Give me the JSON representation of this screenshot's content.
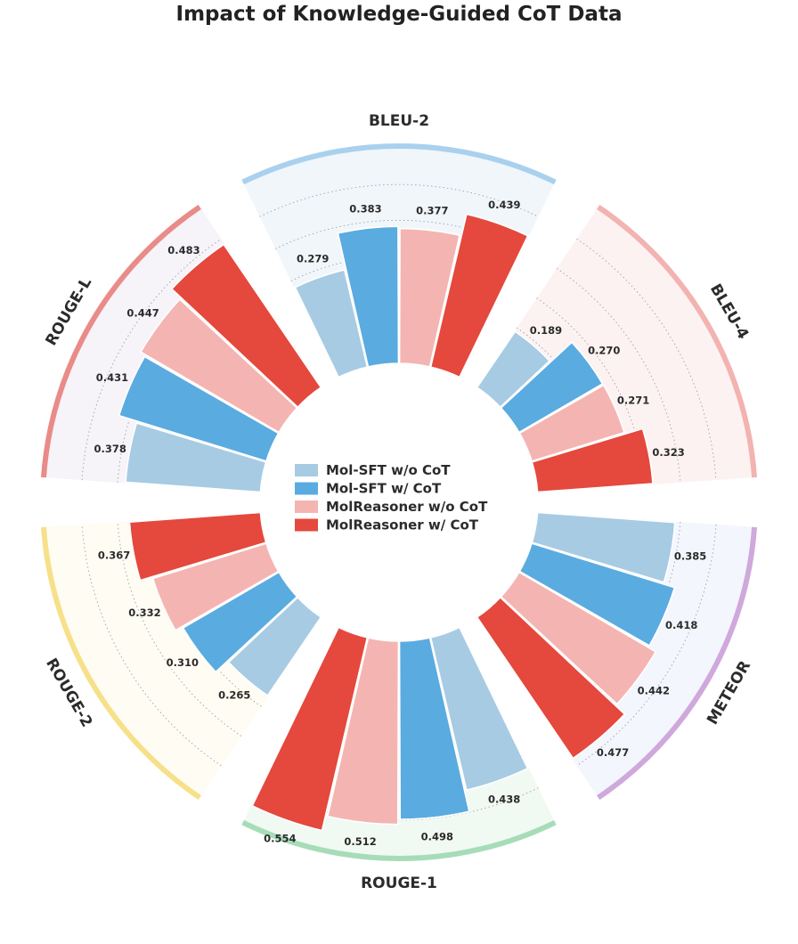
{
  "chart_data": {
    "type": "bar",
    "subtype": "radial-grouped-bar",
    "title": "Impact of Knowledge-Guided CoT Data",
    "categories": [
      "BLEU-2",
      "BLEU-4",
      "METEOR",
      "ROUGE-1",
      "ROUGE-2",
      "ROUGE-L"
    ],
    "category_colors": [
      "#a9d1ee",
      "#f2b3b1",
      "#cfa8dc",
      "#a6dcb8",
      "#f7e08a",
      "#e98b88"
    ],
    "sector_fills": [
      "#f1f6fa",
      "#fdf2f2",
      "#f3f6fc",
      "#f1f9f3",
      "#fefcf3",
      "#f6f3f9"
    ],
    "series": [
      {
        "name": "Mol-SFT w/o CoT",
        "color": "#a7cbe3",
        "values": [
          0.279,
          0.189,
          0.385,
          0.438,
          0.265,
          0.378
        ]
      },
      {
        "name": "Mol-SFT w/ CoT",
        "color": "#5aabe0",
        "values": [
          0.383,
          0.27,
          0.418,
          0.498,
          0.31,
          0.431
        ]
      },
      {
        "name": "MolReasoner w/o CoT",
        "color": "#f4b5b2",
        "values": [
          0.377,
          0.271,
          0.442,
          0.512,
          0.332,
          0.447
        ]
      },
      {
        "name": "MolReasoner w/ CoT",
        "color": "#e5483c",
        "values": [
          0.439,
          0.323,
          0.477,
          0.554,
          0.367,
          0.483
        ]
      }
    ],
    "value_labels": {
      "BLEU-2": [
        "0.279",
        "0.383",
        "0.377",
        "0.439"
      ],
      "BLEU-4": [
        "0.189",
        "0.270",
        "0.271",
        "0.323"
      ],
      "METEOR": [
        "0.385",
        "0.418",
        "0.442",
        "0.477"
      ],
      "ROUGE-1": [
        "0.438",
        "0.498",
        "0.512",
        "0.554"
      ],
      "ROUGE-2": [
        "0.265",
        "0.310",
        "0.332",
        "0.367"
      ],
      "ROUGE-L": [
        "0.378",
        "0.431",
        "0.447",
        "0.483"
      ]
    },
    "radial_axis": {
      "range": [
        0,
        0.6
      ],
      "gridlines": [
        0.1,
        0.2,
        0.3,
        0.4,
        0.5
      ],
      "grid": true
    },
    "legend": {
      "position": "center"
    }
  }
}
